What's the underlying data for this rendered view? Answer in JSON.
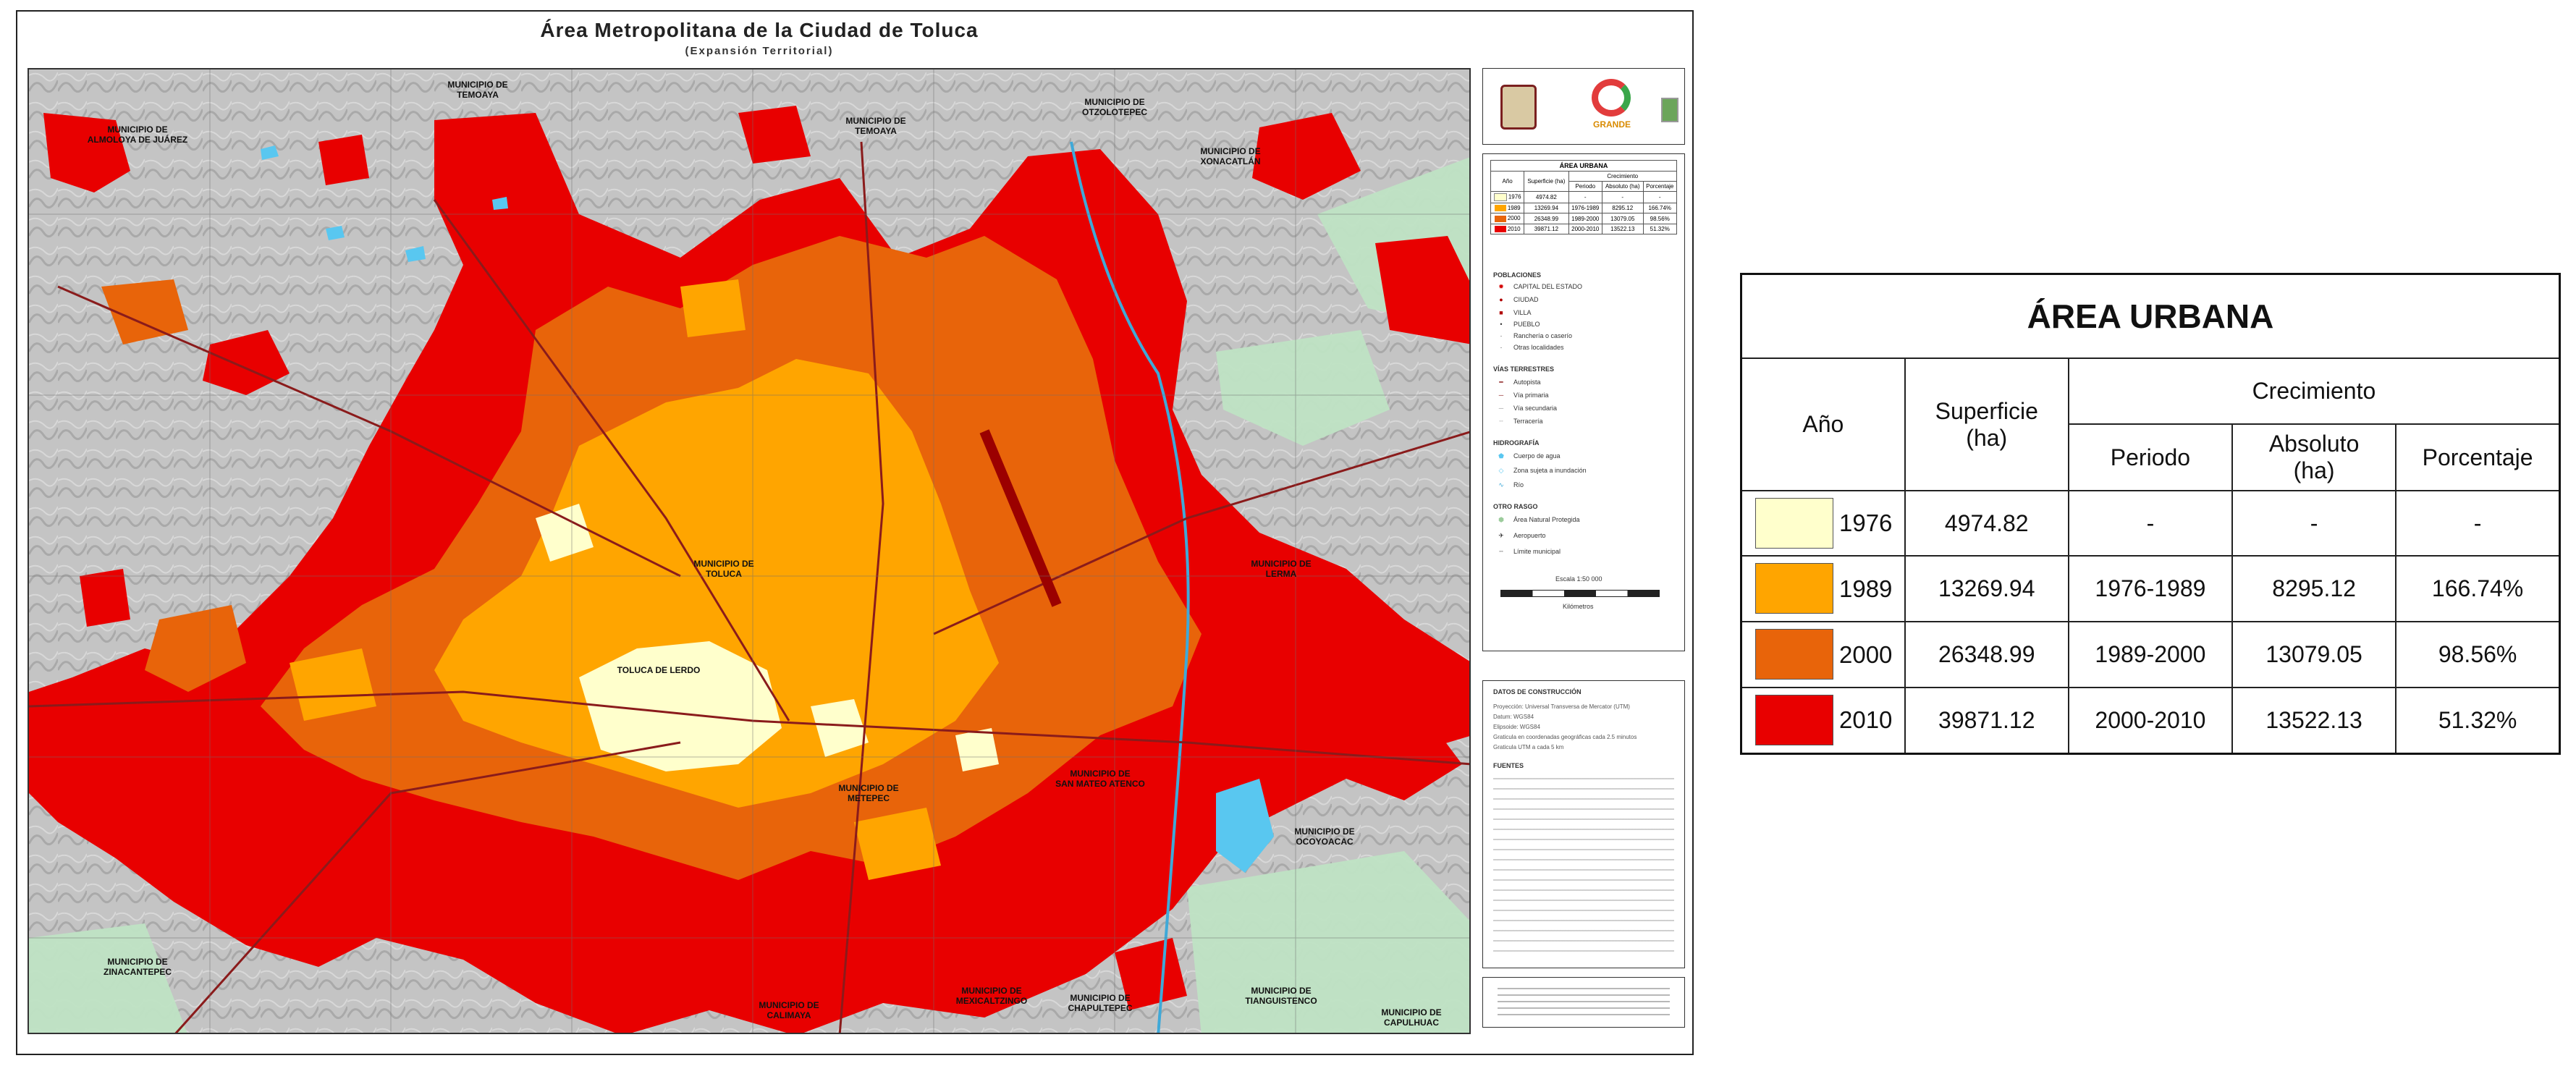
{
  "map": {
    "title": "Área Metropolitana de la Ciudad de Toluca",
    "subtitle": "(Expansión Territorial)",
    "labels": [
      {
        "text": "MUNICIPIO DE\nALMOLOYA DE JUÁREZ"
      },
      {
        "text": "MUNICIPIO DE\nTEMOAYA"
      },
      {
        "text": "MUNICIPIO DE\nTEMOAYA"
      },
      {
        "text": "MUNICIPIO DE\nOTZOLOTEPEC"
      },
      {
        "text": "MUNICIPIO DE\nXONACATLÁN"
      },
      {
        "text": "MUNICIPIO DE\nTOLUCA"
      },
      {
        "text": "MUNICIPIO DE\nLERMA"
      },
      {
        "text": "MUNICIPIO DE\nMETEPEC"
      },
      {
        "text": "MUNICIPIO DE\nSAN MATEO ATENCO"
      },
      {
        "text": "MUNICIPIO DE\nOCOYOACAC"
      },
      {
        "text": "MUNICIPIO DE\nZINACANTEPEC"
      },
      {
        "text": "MUNICIPIO DE\nCALIMAYA"
      },
      {
        "text": "MUNICIPIO DE\nMEXICALTZINGO"
      },
      {
        "text": "MUNICIPIO DE\nCHAPULTEPEC"
      },
      {
        "text": "MUNICIPIO DE\nTIANGUISTENCO"
      },
      {
        "text": "MUNICIPIO DE\nCAPULHUAC"
      },
      {
        "text": "TOLUCA DE LERDO"
      }
    ]
  },
  "legend_panel": {
    "logo_text": "GRANDE",
    "area_title": "ÁREA URBANA",
    "mini_headers": [
      "Año",
      "Superficie (ha)",
      "Crecimiento",
      "Periodo",
      "Absoluto (ha)",
      "Porcentaje"
    ],
    "sections": {
      "poblaciones": "POBLACIONES",
      "vias": "VÍAS TERRESTRES",
      "hidrografia": "HIDROGRAFÍA",
      "otro": "OTRO RASGO"
    },
    "poblaciones_items": [
      "CAPITAL DEL ESTADO",
      "CIUDAD",
      "VILLA",
      "PUEBLO",
      "Ranchería o caserío",
      "Otras localidades"
    ],
    "vias_items": [
      "Autopista",
      "Vía primaria",
      "Vía secundaria",
      "Terracería"
    ],
    "hidro_items": [
      "Cuerpo de agua",
      "Zona sujeta a inundación",
      "Río"
    ],
    "otro_items": [
      "Área Natural Protegida",
      "Aeropuerto",
      "Límite municipal"
    ],
    "scale_label": "Escala 1:50 000",
    "scale_units": "Kilómetros",
    "scale_ticks": [
      "0",
      "0.5",
      "1",
      "2",
      "3",
      "4"
    ],
    "datos_title": "DATOS DE CONSTRUCCIÓN",
    "datos_lines": [
      "Proyección: Universal Transversa de Mercator (UTM)",
      "Datum: WGS84",
      "Elipsoide: WGS84",
      "Graticula en coordenadas geográficas cada 2.5 minutos",
      "Graticula UTM a cada 5 km"
    ],
    "fuentes_title": "FUENTES"
  },
  "table": {
    "title": "ÁREA URBANA",
    "col_year": "Año",
    "col_area": "Superficie\n(ha)",
    "col_growth": "Crecimiento",
    "col_period": "Periodo",
    "col_abs": "Absoluto\n(ha)",
    "col_pct": "Porcentaje",
    "rows": [
      {
        "year": "1976",
        "area": "4974.82",
        "period": "-",
        "abs": "-",
        "pct": "-",
        "color": "#ffffcc"
      },
      {
        "year": "1989",
        "area": "13269.94",
        "period": "1976-1989",
        "abs": "8295.12",
        "pct": "166.74%",
        "color": "#ffa500"
      },
      {
        "year": "2000",
        "area": "26348.99",
        "period": "1989-2000",
        "abs": "13079.05",
        "pct": "98.56%",
        "color": "#e8640a"
      },
      {
        "year": "2010",
        "area": "39871.12",
        "period": "2000-2010",
        "abs": "13522.13",
        "pct": "51.32%",
        "color": "#e80000"
      }
    ]
  },
  "colors": {
    "c1976": "#ffffcc",
    "c1989": "#ffa500",
    "c2000": "#e8640a",
    "c2010": "#e80000",
    "terrain": "#bdbdbd",
    "protected": "#bfe3c4",
    "water": "#59c7f0"
  }
}
